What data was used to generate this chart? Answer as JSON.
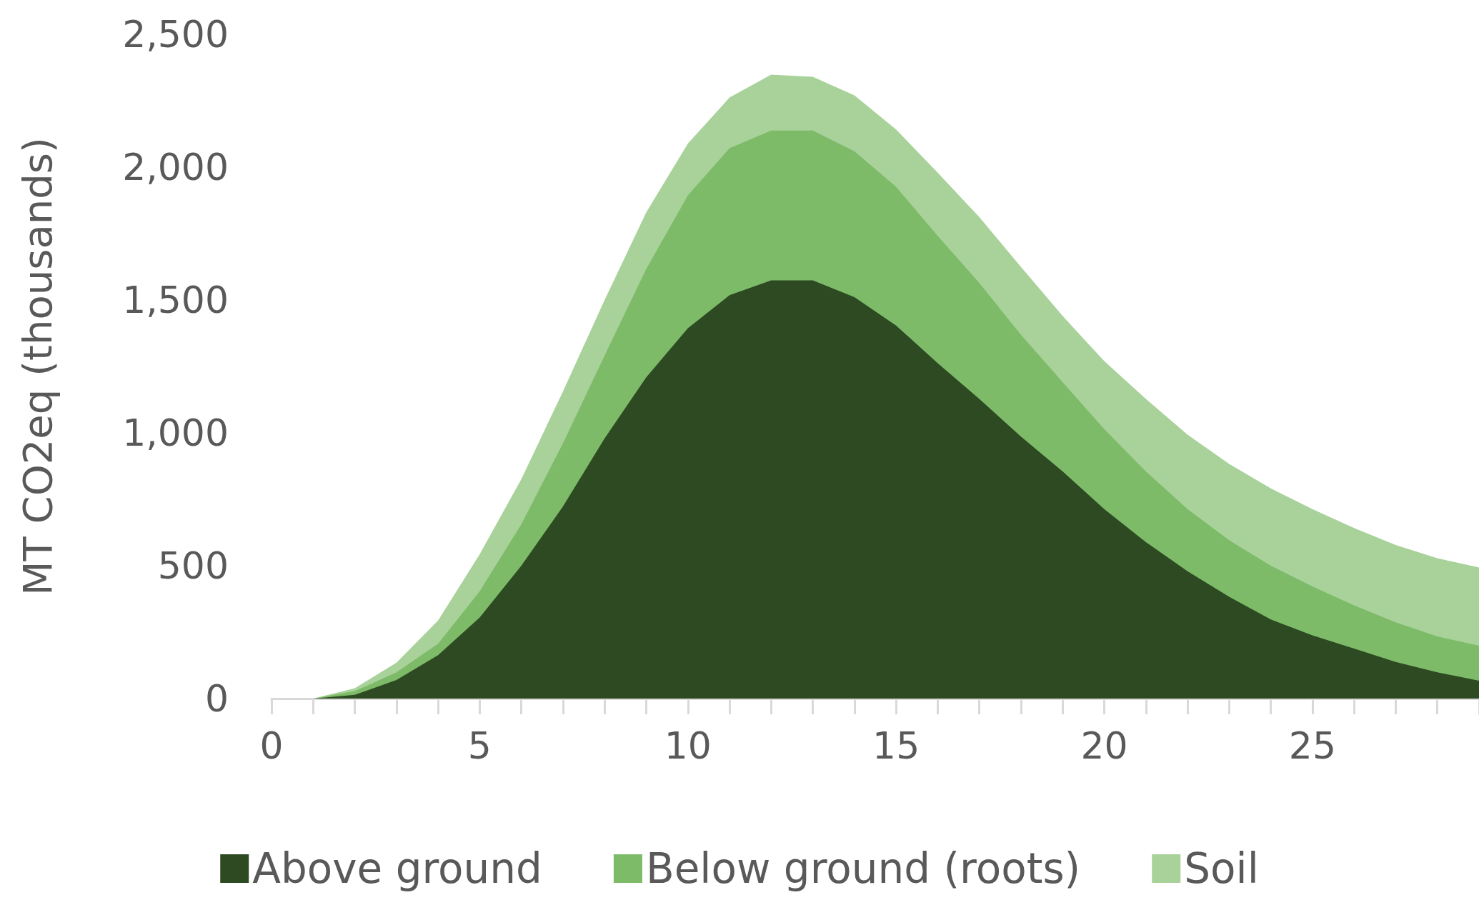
{
  "chart_data": {
    "type": "area",
    "stacked": true,
    "ylabel": "MT CO2eq (thousands)",
    "x": [
      0,
      1,
      2,
      3,
      4,
      5,
      6,
      7,
      8,
      9,
      10,
      11,
      12,
      13,
      14,
      15,
      16,
      17,
      18,
      19,
      20,
      21,
      22,
      23,
      24,
      25,
      26,
      27,
      28,
      29
    ],
    "series": [
      {
        "name": "Above ground",
        "color": "#2d4a22",
        "values": [
          0,
          0,
          14,
          70,
          163,
          305,
          500,
          723,
          979,
          1209,
          1394,
          1518,
          1574,
          1574,
          1511,
          1404,
          1262,
          1128,
          986,
          855,
          713,
          589,
          479,
          383,
          298,
          238,
          188,
          138,
          99,
          67
        ]
      },
      {
        "name": "Below ground (roots)",
        "color": "#7dbb69",
        "values": [
          0,
          0,
          14,
          29,
          43,
          99,
          156,
          238,
          312,
          408,
          500,
          553,
          564,
          564,
          549,
          522,
          479,
          436,
          383,
          336,
          301,
          266,
          234,
          213,
          202,
          184,
          163,
          149,
          135,
          132
        ]
      },
      {
        "name": "Soil",
        "color": "#a9d29b",
        "values": [
          0,
          0,
          11,
          36,
          88,
          139,
          170,
          195,
          209,
          213,
          195,
          191,
          210,
          202,
          210,
          216,
          238,
          248,
          255,
          249,
          256,
          273,
          280,
          287,
          291,
          291,
          291,
          291,
          294,
          294
        ]
      }
    ],
    "xlim": [
      0,
      29
    ],
    "xticks": [
      0,
      5,
      10,
      15,
      20,
      25
    ],
    "ylim": [
      0,
      2500
    ],
    "yticks": [
      0,
      500,
      {
        "value": 1000,
        "label": "1,000"
      },
      {
        "value": 1500,
        "label": "1,500"
      },
      {
        "value": 2000,
        "label": "2,000"
      },
      {
        "value": 2500,
        "label": "2,500"
      }
    ],
    "grid": false,
    "legend": "bottom"
  }
}
